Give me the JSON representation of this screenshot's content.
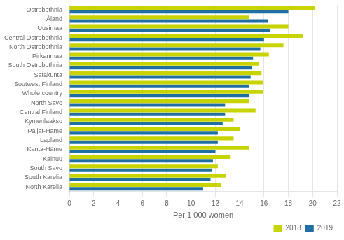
{
  "chart_data": {
    "type": "bar",
    "orientation": "horizontal",
    "categories": [
      "Ostrobothnia",
      "Åland",
      "Uusimaa",
      "Central Ostrobothnia",
      "North Ostrobothnia",
      "Pirkanmaa",
      "South Ostrobothnia",
      "Satakunta",
      "Soutwest Finland",
      "Whole country",
      "North Savo",
      "Central Finland",
      "Kymenlaakso",
      "Päijät-Häme",
      "Lapland",
      "Kanta-Häme",
      "Kainuu",
      "South Savo",
      "South Karelia",
      "North Karelia"
    ],
    "series": [
      {
        "name": "2018",
        "color": "#c8d400",
        "values": [
          20.2,
          14.8,
          18.0,
          19.2,
          17.6,
          16.4,
          15.6,
          15.8,
          15.9,
          15.9,
          14.8,
          15.3,
          13.5,
          14.0,
          13.5,
          14.8,
          13.2,
          12.2,
          12.9,
          12.5
        ]
      },
      {
        "name": "2019",
        "color": "#1f6fa5",
        "values": [
          18.0,
          16.3,
          16.5,
          16.0,
          15.7,
          15.1,
          15.0,
          14.9,
          14.8,
          14.8,
          12.8,
          12.8,
          12.6,
          12.2,
          12.2,
          12.0,
          11.8,
          11.7,
          11.6,
          11.0
        ]
      }
    ],
    "xlabel": "Per 1 000 women",
    "xlim": [
      0,
      22
    ],
    "xticks": [
      0,
      2,
      4,
      6,
      8,
      10,
      12,
      14,
      16,
      18,
      20,
      22
    ],
    "grid": true,
    "legend": "lower right"
  }
}
